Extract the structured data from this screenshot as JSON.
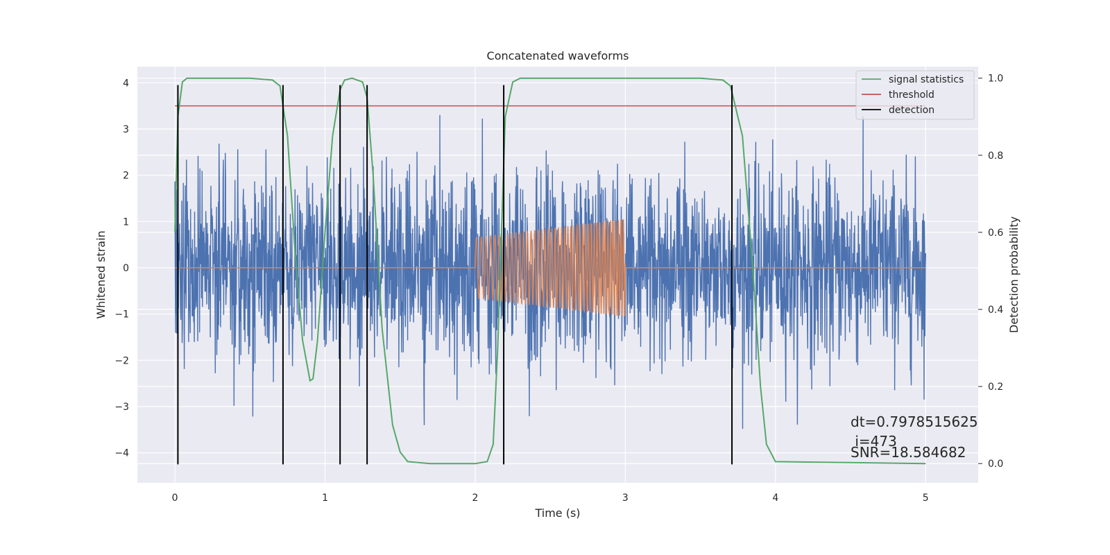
{
  "chart_data": {
    "type": "line",
    "title": "Concatenated waveforms",
    "xlabel": "Time (s)",
    "ylabel": "Whitened strain",
    "ylabel_right": "Detection probability",
    "xlim": [
      -0.25,
      5.35
    ],
    "ylim": [
      -4.65,
      4.35
    ],
    "ylim_right": [
      -0.05,
      1.03
    ],
    "x_ticks": [
      0,
      1,
      2,
      3,
      4,
      5
    ],
    "y_ticks": [
      -4,
      -3,
      -2,
      -1,
      0,
      1,
      2,
      3,
      4
    ],
    "y_ticks_right": [
      0.0,
      0.2,
      0.4,
      0.6,
      0.8,
      1.0
    ],
    "grid": true,
    "legend_position": "top-right",
    "colors": {
      "background": "#eaeaf2",
      "strain": "#4c72b0",
      "template": "#dd8452",
      "signal_statistics": "#55a868",
      "threshold": "#c44e52",
      "detection": "#000000"
    },
    "strain": {
      "x_range": [
        0,
        5
      ],
      "std": 1.0,
      "approx_range": [
        -4.3,
        3.9
      ]
    },
    "template": {
      "start": 2.0,
      "end": 3.0,
      "amplitude_start": 0.65,
      "amplitude_end": 1.05,
      "freq_start": 30,
      "freq_end": 60
    },
    "series": [
      {
        "name": "signal statistics",
        "axis": "right",
        "x": [
          0.0,
          0.02,
          0.05,
          0.08,
          0.2,
          0.5,
          0.65,
          0.7,
          0.75,
          0.8,
          0.85,
          0.9,
          0.92,
          0.95,
          1.0,
          1.05,
          1.1,
          1.13,
          1.18,
          1.25,
          1.28,
          1.32,
          1.38,
          1.45,
          1.5,
          1.55,
          1.7,
          2.0,
          2.08,
          2.12,
          2.15,
          2.2,
          2.25,
          2.3,
          2.4,
          3.0,
          3.5,
          3.65,
          3.7,
          3.78,
          3.85,
          3.9,
          3.94,
          4.0,
          5.0
        ],
        "y": [
          0.6,
          0.9,
          0.99,
          1.0,
          1.0,
          1.0,
          0.995,
          0.98,
          0.85,
          0.55,
          0.32,
          0.215,
          0.22,
          0.32,
          0.6,
          0.85,
          0.97,
          0.995,
          1.0,
          0.99,
          0.95,
          0.75,
          0.35,
          0.1,
          0.03,
          0.005,
          0.0,
          0.0,
          0.005,
          0.05,
          0.3,
          0.9,
          0.99,
          1.0,
          1.0,
          1.0,
          1.0,
          0.995,
          0.98,
          0.85,
          0.5,
          0.2,
          0.05,
          0.005,
          0.0
        ]
      },
      {
        "name": "threshold",
        "axis": "left",
        "x": [
          0,
          5
        ],
        "y": [
          3.5,
          3.5
        ]
      }
    ],
    "detections": {
      "name": "detection",
      "x": [
        0.02,
        0.72,
        1.1,
        1.28,
        2.19,
        3.71
      ],
      "y_range": [
        -4.25,
        3.95
      ]
    },
    "legend": [
      "signal statistics",
      "threshold",
      "detection"
    ],
    "annotations": [
      "dt=0.7978515625",
      " i=473",
      "SNR=18.584682"
    ]
  }
}
